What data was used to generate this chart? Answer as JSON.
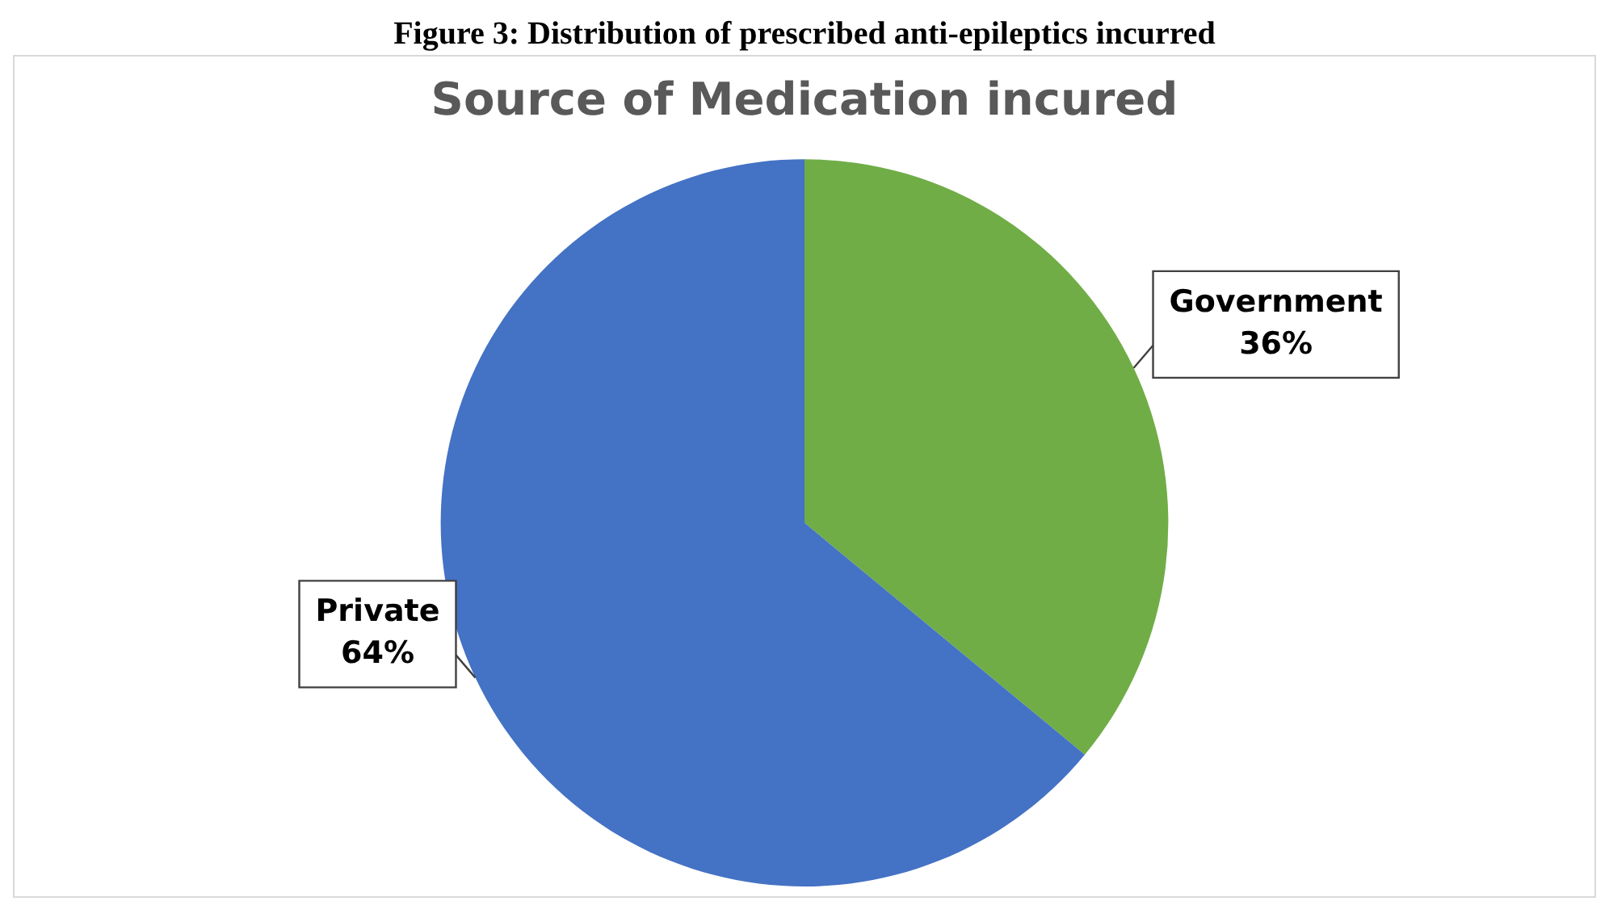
{
  "chart_data": {
    "type": "pie",
    "title": "Source of Medication incured",
    "annotations": [
      "Figure 3: Distribution of prescribed anti-epileptics incurred"
    ],
    "categories": [
      "Government",
      "Private"
    ],
    "values": [
      36,
      64
    ],
    "colors": [
      "#70ad47",
      "#4472c4"
    ],
    "value_labels": [
      "36%",
      "64%"
    ],
    "legend": false
  }
}
